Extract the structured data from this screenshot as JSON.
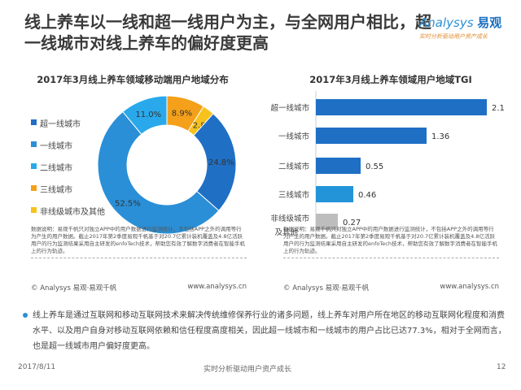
{
  "header": {
    "title": "线上养车以一线和超一线用户为主，与全网用户相比，超一线城市对线上养车的偏好度更高",
    "logo_brand": "Analysys",
    "logo_cn": "易观",
    "logo_slogan": "实时分析驱动用户资产成长"
  },
  "chart_data": [
    {
      "type": "pie",
      "title": "2017年3月线上养车领域移动端用户地域分布",
      "categories": [
        "超一线城市",
        "一线城市",
        "二线城市",
        "三线城市",
        "非线级城市及其他"
      ],
      "values": [
        24.8,
        52.5,
        11.0,
        8.9,
        2.8
      ],
      "labels": [
        "24.8%",
        "52.5%",
        "11.0%",
        "8.9%",
        "2.8%"
      ],
      "colors": [
        "#1f6fc5",
        "#2a8fd6",
        "#29a9ec",
        "#f5a01a",
        "#f7c21c"
      ],
      "legend": "left",
      "donut": true
    },
    {
      "type": "bar",
      "orientation": "horizontal",
      "title": "2017年3月线上养车领域用户地域TGI",
      "categories": [
        "超一线城市",
        "一线城市",
        "二线城市",
        "三线城市",
        "非线级城市及其他"
      ],
      "values": [
        2.1,
        1.36,
        0.55,
        0.46,
        0.27
      ],
      "labels": [
        "2.1",
        "1.36",
        "0.55",
        "0.46",
        "0.27"
      ],
      "colors": [
        "#1f6fc5",
        "#1f6fc5",
        "#1f6fc5",
        "#2394d8",
        "#bdbdbd"
      ],
      "xlim": [
        0,
        2.2
      ]
    }
  ],
  "notes": {
    "left": "数据说明：易观千帆只对独立APP中的用户数据进行监测统计，不包括APP之外的调用等行为产生的用户数据。截止2017年第2季度易观千帆基于对20.7亿累计装机覆盖及4.8亿活跃用户的行为监测结果采用自主研发的enfoTech技术，帮助您有效了解数字消费者在智能手机上的行为轨迹。",
    "right": "数据说明：易观千帆只对独立APP中的用户数据进行监测统计，不包括APP之外的调用等行为产生的用户数据。截止2017年第2季度易观千帆基于对20.7亿累计装机覆盖及4.8亿活跃用户的行为监测结果采用自主研发的enfoTech技术，帮助您有效了解数字消费者在智能手机上的行为轨迹。",
    "copyright": "© Analysys 易观·易观千帆",
    "url": "www.analysys.cn"
  },
  "bullet": "线上养车是通过互联网和移动互联网技术来解决传统维修保养行业的诸多问题，线上养车对用户所在地区的移动互联网化程度和消费水平、以及用户自身对移动互联网依赖和信任程度高度相关，因此超一线城市和一线城市的用户占比已达77.3%，相对于全网而言，也是超一线城市用户偏好度更高。",
  "footer": {
    "date": "2017/8/11",
    "slogan": "实时分析驱动用户资产成长",
    "page": "12"
  }
}
